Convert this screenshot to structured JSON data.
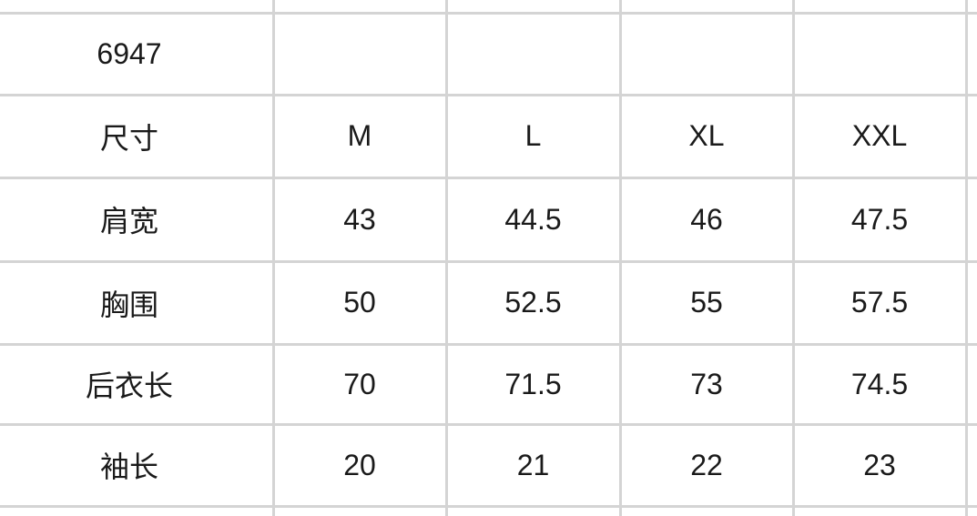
{
  "table": {
    "rows": [
      [
        "6947",
        "",
        "",
        "",
        ""
      ],
      [
        "尺寸",
        "M",
        "L",
        "XL",
        "XXL"
      ],
      [
        "肩宽",
        "43",
        "44.5",
        "46",
        "47.5"
      ],
      [
        "胸围",
        "50",
        "52.5",
        "55",
        "57.5"
      ],
      [
        "后衣长",
        "70",
        "71.5",
        "73",
        "74.5"
      ],
      [
        "袖长",
        "20",
        "21",
        "22",
        "23"
      ]
    ],
    "grid_color": "#d4d4d4"
  }
}
